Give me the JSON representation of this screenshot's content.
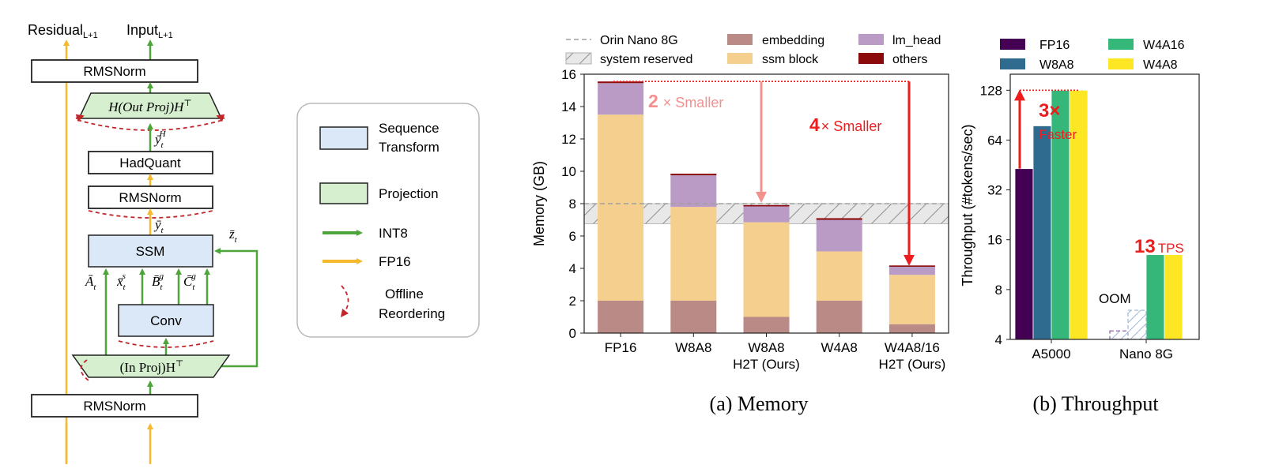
{
  "diagram": {
    "residual_label": "Residual",
    "residual_sub": "L+1",
    "input_label": "Input",
    "input_sub": "L+1",
    "rmsnorm_top": "RMSNorm",
    "out_proj": "H(Out Proj)H",
    "out_proj_sup": "⊤",
    "y_h_label": "ȳ",
    "y_h_sub": "t",
    "y_h_sup": "H",
    "hadquant": "HadQuant",
    "rmsnorm_mid": "RMSNorm",
    "y_label": "ȳ",
    "y_sub": "t",
    "z_label": "z̄",
    "z_sub": "t",
    "ssm": "SSM",
    "a_label": "Ā",
    "a_sub": "t",
    "x_label": "x̄",
    "x_sub": "t",
    "x_sup": "s",
    "b_label": "B̄",
    "b_sub": "t",
    "b_sup": "g",
    "c_label": "C̄",
    "c_sub": "t",
    "c_sup": "g",
    "conv": "Conv",
    "in_proj": "(In Proj)H",
    "in_proj_sup": "⊤",
    "rmsnorm_bottom": "RMSNorm"
  },
  "legend_box": {
    "sequence_transform": [
      "Sequence",
      "Transform"
    ],
    "projection": "Projection",
    "int8": "INT8",
    "fp16": "FP16",
    "offline_reordering": [
      "Offline",
      "Reordering"
    ]
  },
  "colors": {
    "seq_fill": "#dae8f7",
    "proj_fill": "#d5efcf",
    "int8_arrow": "#4ea43a",
    "fp16_arrow": "#f5b82e",
    "reorder": "#c0262a",
    "embedding": "#b98a86",
    "ssm_block": "#f5cf8e",
    "lm_head": "#b99bc5",
    "others": "#8b0a0a",
    "fp16": "#440154",
    "w8a8": "#2f6b8e",
    "w4a16": "#35b779",
    "w4a8": "#fde725",
    "highlight": "#ee1c1c",
    "highlight_light": "#f4908e"
  },
  "memory_chart": {
    "caption": "(a) Memory",
    "annot_2x_num": "2",
    "annot_2x_text": "× Smaller",
    "annot_4x_num": "4",
    "annot_4x_text": "× Smaller"
  },
  "throughput_chart": {
    "caption": "(b) Throughput",
    "annot_3x": "3×",
    "annot_faster": "Faster",
    "annot_13": "13",
    "annot_tps": "TPS",
    "oom": "OOM"
  },
  "chart_data": [
    {
      "type": "bar",
      "stacked": true,
      "title": "",
      "xlabel": "",
      "ylabel": "Memory (GB)",
      "ylim": [
        0,
        16
      ],
      "yticks": [
        0,
        2,
        4,
        6,
        8,
        10,
        12,
        14,
        16
      ],
      "categories": [
        "FP16",
        "W8A8",
        "W8A8\nH2T (Ours)",
        "W4A8",
        "W4A8/16\nH2T (Ours)"
      ],
      "series": [
        {
          "name": "embedding",
          "values": [
            2.0,
            2.0,
            1.0,
            2.0,
            0.55
          ]
        },
        {
          "name": "ssm block",
          "values": [
            11.5,
            5.8,
            5.85,
            3.05,
            3.05
          ]
        },
        {
          "name": "lm_head",
          "values": [
            1.95,
            1.95,
            0.98,
            1.95,
            0.5
          ]
        },
        {
          "name": "others",
          "values": [
            0.1,
            0.1,
            0.08,
            0.1,
            0.08
          ]
        }
      ],
      "reference_line": {
        "name": "Orin Nano 8G",
        "value": 8.0
      },
      "reserved_band": {
        "name": "system reserved",
        "range": [
          6.75,
          8.0
        ]
      },
      "legend": [
        "Orin Nano 8G",
        "system reserved",
        "embedding",
        "ssm block",
        "lm_head",
        "others"
      ],
      "legend_position": "top",
      "grid": false
    },
    {
      "type": "bar",
      "title": "",
      "xlabel": "",
      "ylabel": "Throughput (#tokens/sec)",
      "yscale": "log2",
      "ylim": [
        4,
        160
      ],
      "yticks": [
        4,
        8,
        16,
        32,
        64,
        128
      ],
      "categories": [
        "A5000",
        "Nano 8G"
      ],
      "series": [
        {
          "name": "FP16",
          "values": [
            43,
            null
          ]
        },
        {
          "name": "W8A8",
          "values": [
            78,
            null
          ]
        },
        {
          "name": "W4A16",
          "values": [
            128,
            13
          ]
        },
        {
          "name": "W4A8",
          "values": [
            128,
            13
          ]
        }
      ],
      "oom": [
        {
          "category": "Nano 8G",
          "series": "FP16",
          "placeholder_value": 4.5
        },
        {
          "category": "Nano 8G",
          "series": "W8A8",
          "placeholder_value": 6
        }
      ],
      "legend": [
        "FP16",
        "W8A8",
        "W4A16",
        "W4A8"
      ],
      "legend_position": "top",
      "grid": false
    }
  ]
}
